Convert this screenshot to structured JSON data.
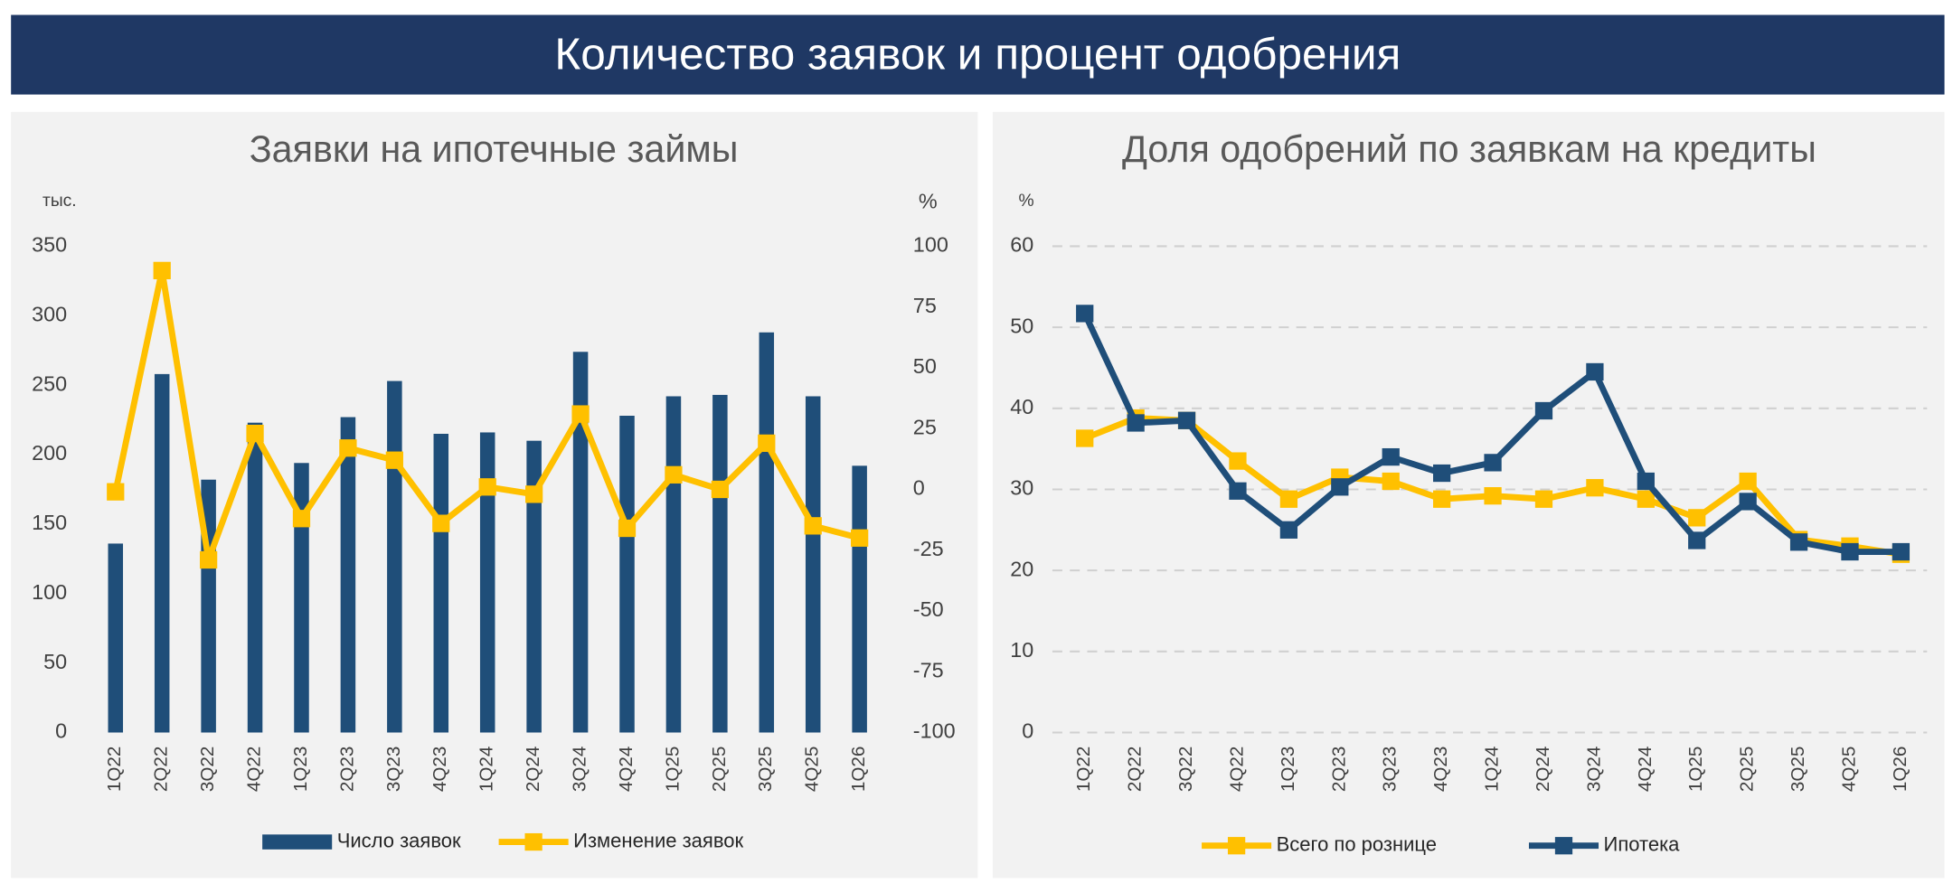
{
  "title": "Количество заявок и процент одобрения",
  "chart_data": [
    {
      "type": "bar_line",
      "title": "Заявки на ипотечные займы",
      "ylabel": "тыс.",
      "y2label": "%",
      "categories": [
        "1Q22",
        "2Q22",
        "3Q22",
        "4Q22",
        "1Q23",
        "2Q23",
        "3Q23",
        "4Q23",
        "1Q24",
        "2Q24",
        "3Q24",
        "4Q24",
        "1Q25",
        "2Q25",
        "3Q25",
        "4Q25",
        "1Q26"
      ],
      "series": [
        {
          "name": "Число заявок",
          "type": "bar",
          "color": "#1f4e79",
          "values": [
            136,
            258,
            182,
            223,
            194,
            227,
            253,
            215,
            216,
            210,
            274,
            228,
            242,
            243,
            288,
            242,
            192
          ]
        },
        {
          "name": "Изменение заявок",
          "type": "line",
          "axis": "y2",
          "color": "#ffc000",
          "values": [
            -1,
            90,
            -29,
            23,
            -12,
            17,
            12,
            -14,
            1,
            -2,
            31,
            -16,
            6,
            0,
            19,
            -15,
            -20
          ]
        }
      ],
      "ylim": [
        0,
        350
      ],
      "yticks": [
        0,
        50,
        100,
        150,
        200,
        250,
        300,
        350
      ],
      "y2lim": [
        -100,
        100
      ],
      "y2ticks": [
        -100,
        -75,
        -50,
        -25,
        0,
        25,
        50,
        75,
        100
      ],
      "grid": false
    },
    {
      "type": "line",
      "title": "Доля одобрений по заявкам на кредиты",
      "ylabel": "%",
      "categories": [
        "1Q22",
        "2Q22",
        "3Q22",
        "4Q22",
        "1Q23",
        "2Q23",
        "3Q23",
        "4Q23",
        "1Q24",
        "2Q24",
        "3Q24",
        "4Q24",
        "1Q25",
        "2Q25",
        "3Q25",
        "4Q25",
        "1Q26"
      ],
      "series": [
        {
          "name": "Всего по рознице",
          "color": "#ffc000",
          "values": [
            36.3,
            38.8,
            38.5,
            33.5,
            28.8,
            31.5,
            31,
            28.8,
            29.2,
            28.8,
            30.2,
            28.8,
            26.5,
            31,
            23.8,
            23,
            22
          ]
        },
        {
          "name": "Ипотека",
          "color": "#1f4e79",
          "values": [
            51.7,
            38.2,
            38.5,
            29.8,
            25,
            30.3,
            34,
            32,
            33.3,
            39.7,
            44.5,
            31,
            23.7,
            28.5,
            23.5,
            22.3,
            22.3
          ]
        }
      ],
      "ylim": [
        0,
        60
      ],
      "yticks": [
        0,
        10,
        20,
        30,
        40,
        50,
        60
      ],
      "grid": true
    }
  ]
}
